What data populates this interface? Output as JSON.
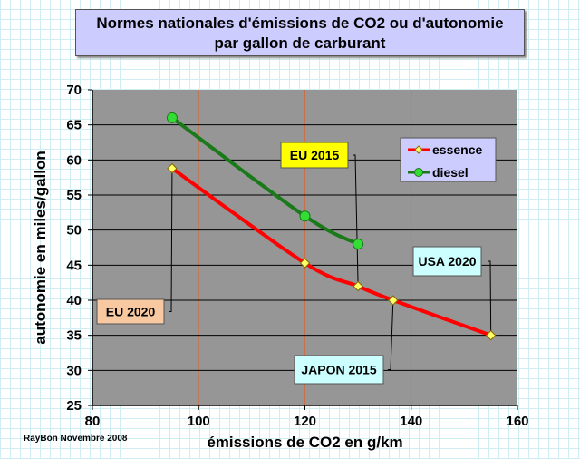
{
  "chart_data": {
    "type": "line",
    "title": "Normes nationales d'émissions de CO2 ou d'autonomie",
    "subtitle": "par gallon de carburant",
    "xlabel": "émissions de CO2 en g/km",
    "ylabel": "autonomie en miles/gallon",
    "xlim": [
      80,
      160
    ],
    "ylim": [
      25,
      70
    ],
    "xticks": [
      80,
      100,
      120,
      140,
      160
    ],
    "yticks": [
      25,
      30,
      35,
      40,
      45,
      50,
      55,
      60,
      65,
      70
    ],
    "grid": true,
    "legend_position": "top-right",
    "series": [
      {
        "name": "essence",
        "color": "#ff0000",
        "marker": "diamond",
        "marker_color": "#ffff66",
        "x": [
          95,
          120,
          130,
          136.6,
          155
        ],
        "y": [
          58.8,
          45.3,
          42,
          40,
          35
        ]
      },
      {
        "name": "diesel",
        "color": "#1a7a1a",
        "marker": "circle",
        "marker_color": "#33dd33",
        "x": [
          95,
          120,
          130
        ],
        "y": [
          66,
          52,
          48
        ]
      }
    ],
    "annotations": [
      {
        "text": "EU 2020",
        "x": 95,
        "y": 58.8,
        "color": "#f8c9a0"
      },
      {
        "text": "EU 2015",
        "x": 130,
        "y": 42,
        "color": "#ffff00"
      },
      {
        "text": "JAPON 2015",
        "x": 136.6,
        "y": 40,
        "color": "#ccffff"
      },
      {
        "text": "USA 2020",
        "x": 155,
        "y": 35,
        "color": "#ccffff"
      }
    ]
  },
  "credit": "RayBon Novembre 2008"
}
